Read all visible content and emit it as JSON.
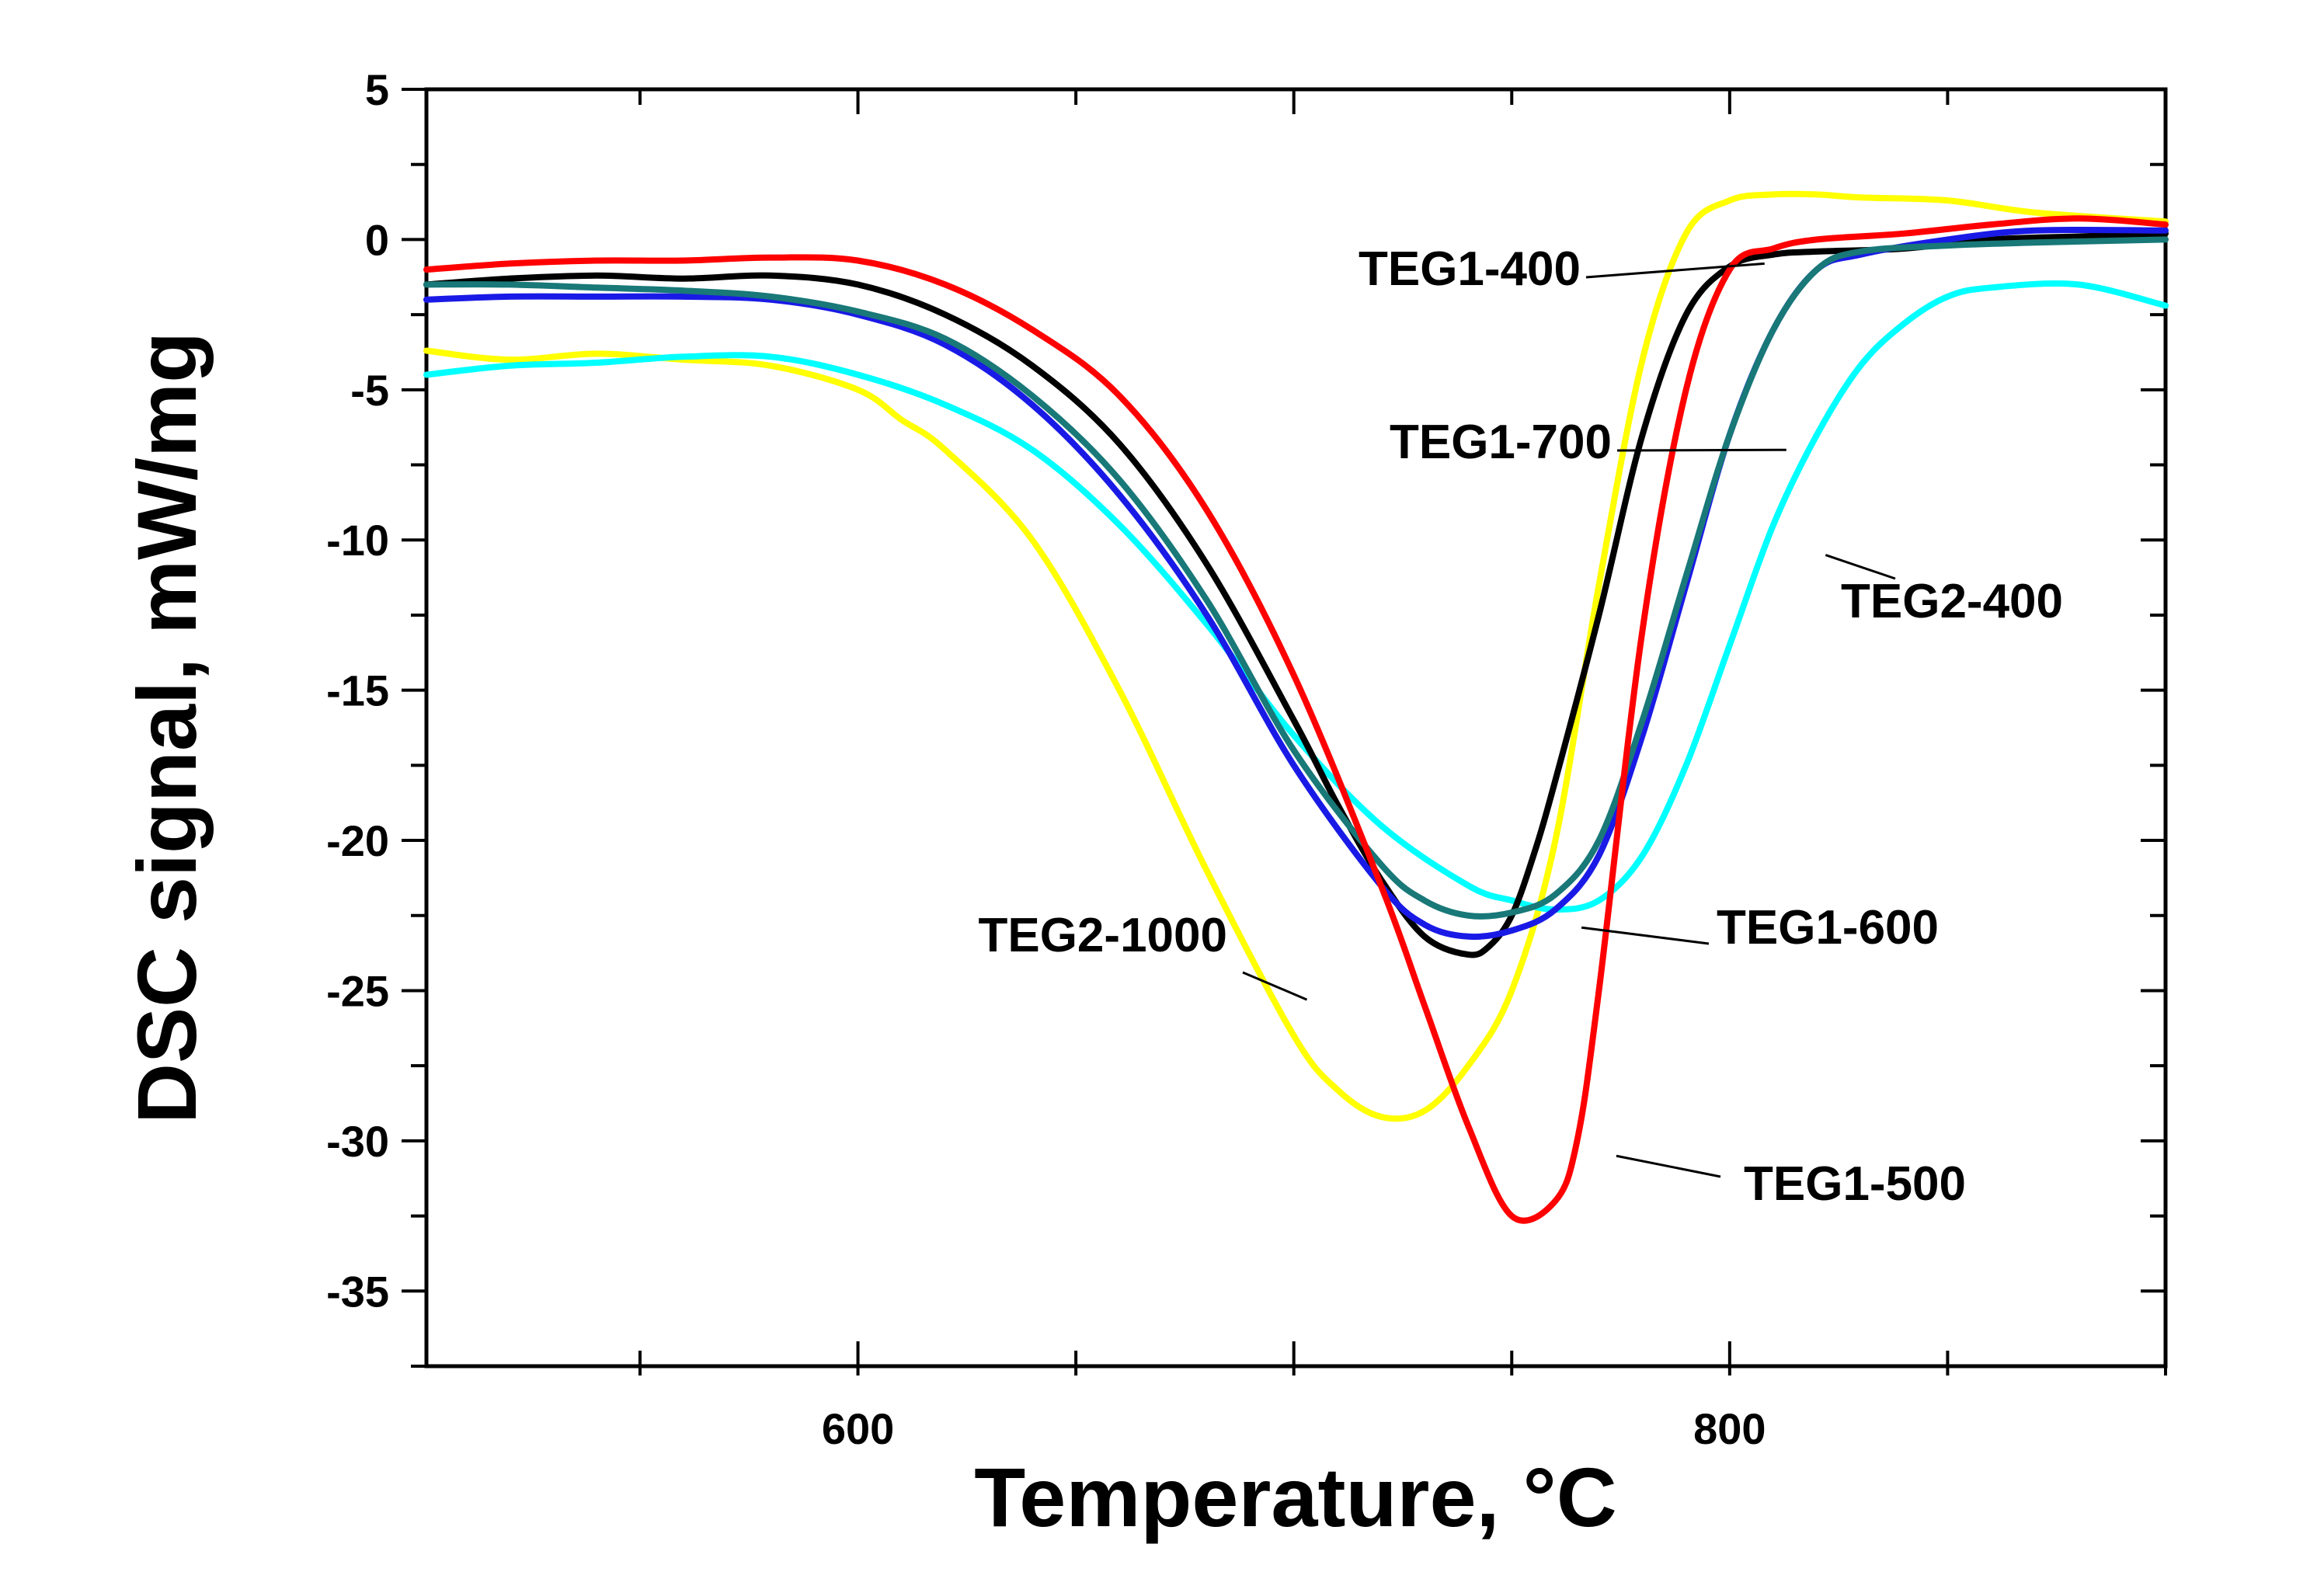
{
  "chart_data": {
    "type": "line",
    "xlabel": "Temperature, °C",
    "ylabel": "DSC signal, mW/mg",
    "xlim": [
      501,
      900
    ],
    "ylim": [
      -37.5,
      5
    ],
    "xticks_major": [
      600,
      800
    ],
    "yticks_major": [
      5,
      0,
      -5,
      -10,
      -15,
      -20,
      -25,
      -30,
      -35
    ],
    "grid": false,
    "legend": "none",
    "series": [
      {
        "name": "TEG1-400",
        "color": "#000000",
        "x": [
          501,
          520,
          540,
          560,
          580,
          600,
          620,
          640,
          660,
          680,
          700,
          710,
          720,
          730,
          740,
          745,
          750,
          755,
          760,
          770,
          780,
          790,
          800,
          810,
          820,
          840,
          860,
          880,
          900
        ],
        "y": [
          -1.5,
          -1.3,
          -1.2,
          -1.3,
          -1.2,
          -1.5,
          -2.5,
          -4.2,
          -6.8,
          -10.8,
          -16,
          -18.8,
          -21.3,
          -23.2,
          -23.8,
          -23.5,
          -22.5,
          -20.5,
          -18,
          -12.5,
          -6.5,
          -2.5,
          -0.9,
          -0.5,
          -0.4,
          -0.3,
          0,
          0.1,
          0.2
        ]
      },
      {
        "name": "TEG1-500",
        "color": "#ff0000",
        "x": [
          501,
          520,
          540,
          560,
          580,
          600,
          620,
          640,
          660,
          680,
          700,
          720,
          730,
          740,
          750,
          760,
          765,
          770,
          780,
          790,
          800,
          810,
          820,
          840,
          860,
          880,
          900
        ],
        "y": [
          -1.0,
          -0.8,
          -0.7,
          -0.7,
          -0.6,
          -0.7,
          -1.5,
          -3.0,
          -5.2,
          -9.0,
          -14.5,
          -21.5,
          -25.5,
          -29.5,
          -32.5,
          -32.0,
          -30.0,
          -25.0,
          -13.0,
          -5.0,
          -1.0,
          -0.3,
          0,
          0.2,
          0.5,
          0.7,
          0.5
        ]
      },
      {
        "name": "TEG1-600",
        "color": "#1a1ae6",
        "x": [
          501,
          520,
          540,
          560,
          580,
          600,
          620,
          640,
          660,
          680,
          700,
          720,
          730,
          740,
          750,
          760,
          770,
          780,
          790,
          800,
          810,
          820,
          830,
          850,
          870,
          900
        ],
        "y": [
          -2.0,
          -1.9,
          -1.9,
          -1.9,
          -2.0,
          -2.5,
          -3.5,
          -5.5,
          -8.5,
          -12.5,
          -17.5,
          -21.5,
          -22.8,
          -23.2,
          -23.0,
          -22.3,
          -20.5,
          -16.5,
          -11.5,
          -6.5,
          -3.0,
          -1.0,
          -0.5,
          0,
          0.3,
          0.3
        ]
      },
      {
        "name": "TEG1-700",
        "color": "#197878",
        "x": [
          501,
          520,
          540,
          560,
          580,
          600,
          620,
          640,
          660,
          680,
          700,
          720,
          730,
          740,
          750,
          760,
          770,
          780,
          790,
          800,
          810,
          820,
          830,
          850,
          870,
          900
        ],
        "y": [
          -1.5,
          -1.5,
          -1.6,
          -1.7,
          -1.9,
          -2.4,
          -3.3,
          -5.2,
          -8.0,
          -12.0,
          -17.0,
          -20.8,
          -22.0,
          -22.5,
          -22.4,
          -21.8,
          -20.0,
          -16.0,
          -11.2,
          -6.5,
          -3.0,
          -1.0,
          -0.4,
          -0.2,
          -0.1,
          0
        ]
      },
      {
        "name": "TEG2-400",
        "color": "#00ffff",
        "x": [
          501,
          520,
          540,
          560,
          580,
          600,
          620,
          640,
          660,
          680,
          700,
          720,
          740,
          750,
          760,
          770,
          780,
          790,
          800,
          810,
          820,
          830,
          840,
          850,
          860,
          880,
          900
        ],
        "y": [
          -4.5,
          -4.2,
          -4.1,
          -3.9,
          -3.9,
          -4.5,
          -5.5,
          -7.0,
          -9.5,
          -12.8,
          -16.5,
          -19.5,
          -21.5,
          -22.0,
          -22.3,
          -22.0,
          -20.5,
          -17.5,
          -13.5,
          -9.5,
          -6.5,
          -4.2,
          -2.8,
          -1.9,
          -1.6,
          -1.5,
          -2.2
        ]
      },
      {
        "name": "TEG2-1000",
        "color": "#ffff00",
        "x": [
          501,
          520,
          540,
          560,
          580,
          600,
          610,
          620,
          640,
          660,
          680,
          700,
          710,
          720,
          730,
          740,
          750,
          760,
          770,
          780,
          790,
          800,
          810,
          820,
          830,
          850,
          870,
          900
        ],
        "y": [
          -3.7,
          -4.0,
          -3.8,
          -4.0,
          -4.2,
          -5.0,
          -6.0,
          -7.0,
          -10.0,
          -15.0,
          -21.0,
          -26.5,
          -28.3,
          -29.2,
          -29.0,
          -27.5,
          -25.0,
          -20.0,
          -11.5,
          -4.0,
          0.2,
          1.3,
          1.5,
          1.5,
          1.4,
          1.3,
          0.9,
          0.6
        ]
      }
    ],
    "annotations": [
      {
        "text": "TEG1-400",
        "series": "TEG1-400",
        "at": [
          808,
          -0.8
        ]
      },
      {
        "text": "TEG1-700",
        "series": "TEG1-700",
        "at": [
          813,
          -7.0
        ]
      },
      {
        "text": "TEG2-400",
        "series": "TEG2-400",
        "at": [
          822,
          -10.5
        ]
      },
      {
        "text": "TEG1-600",
        "series": "TEG1-600",
        "at": [
          766,
          -22.9
        ]
      },
      {
        "text": "TEG2-1000",
        "series": "TEG2-1000",
        "at": [
          703,
          -25.3
        ]
      },
      {
        "text": "TEG1-500",
        "series": "TEG1-500",
        "at": [
          774,
          -30.5
        ]
      }
    ]
  }
}
